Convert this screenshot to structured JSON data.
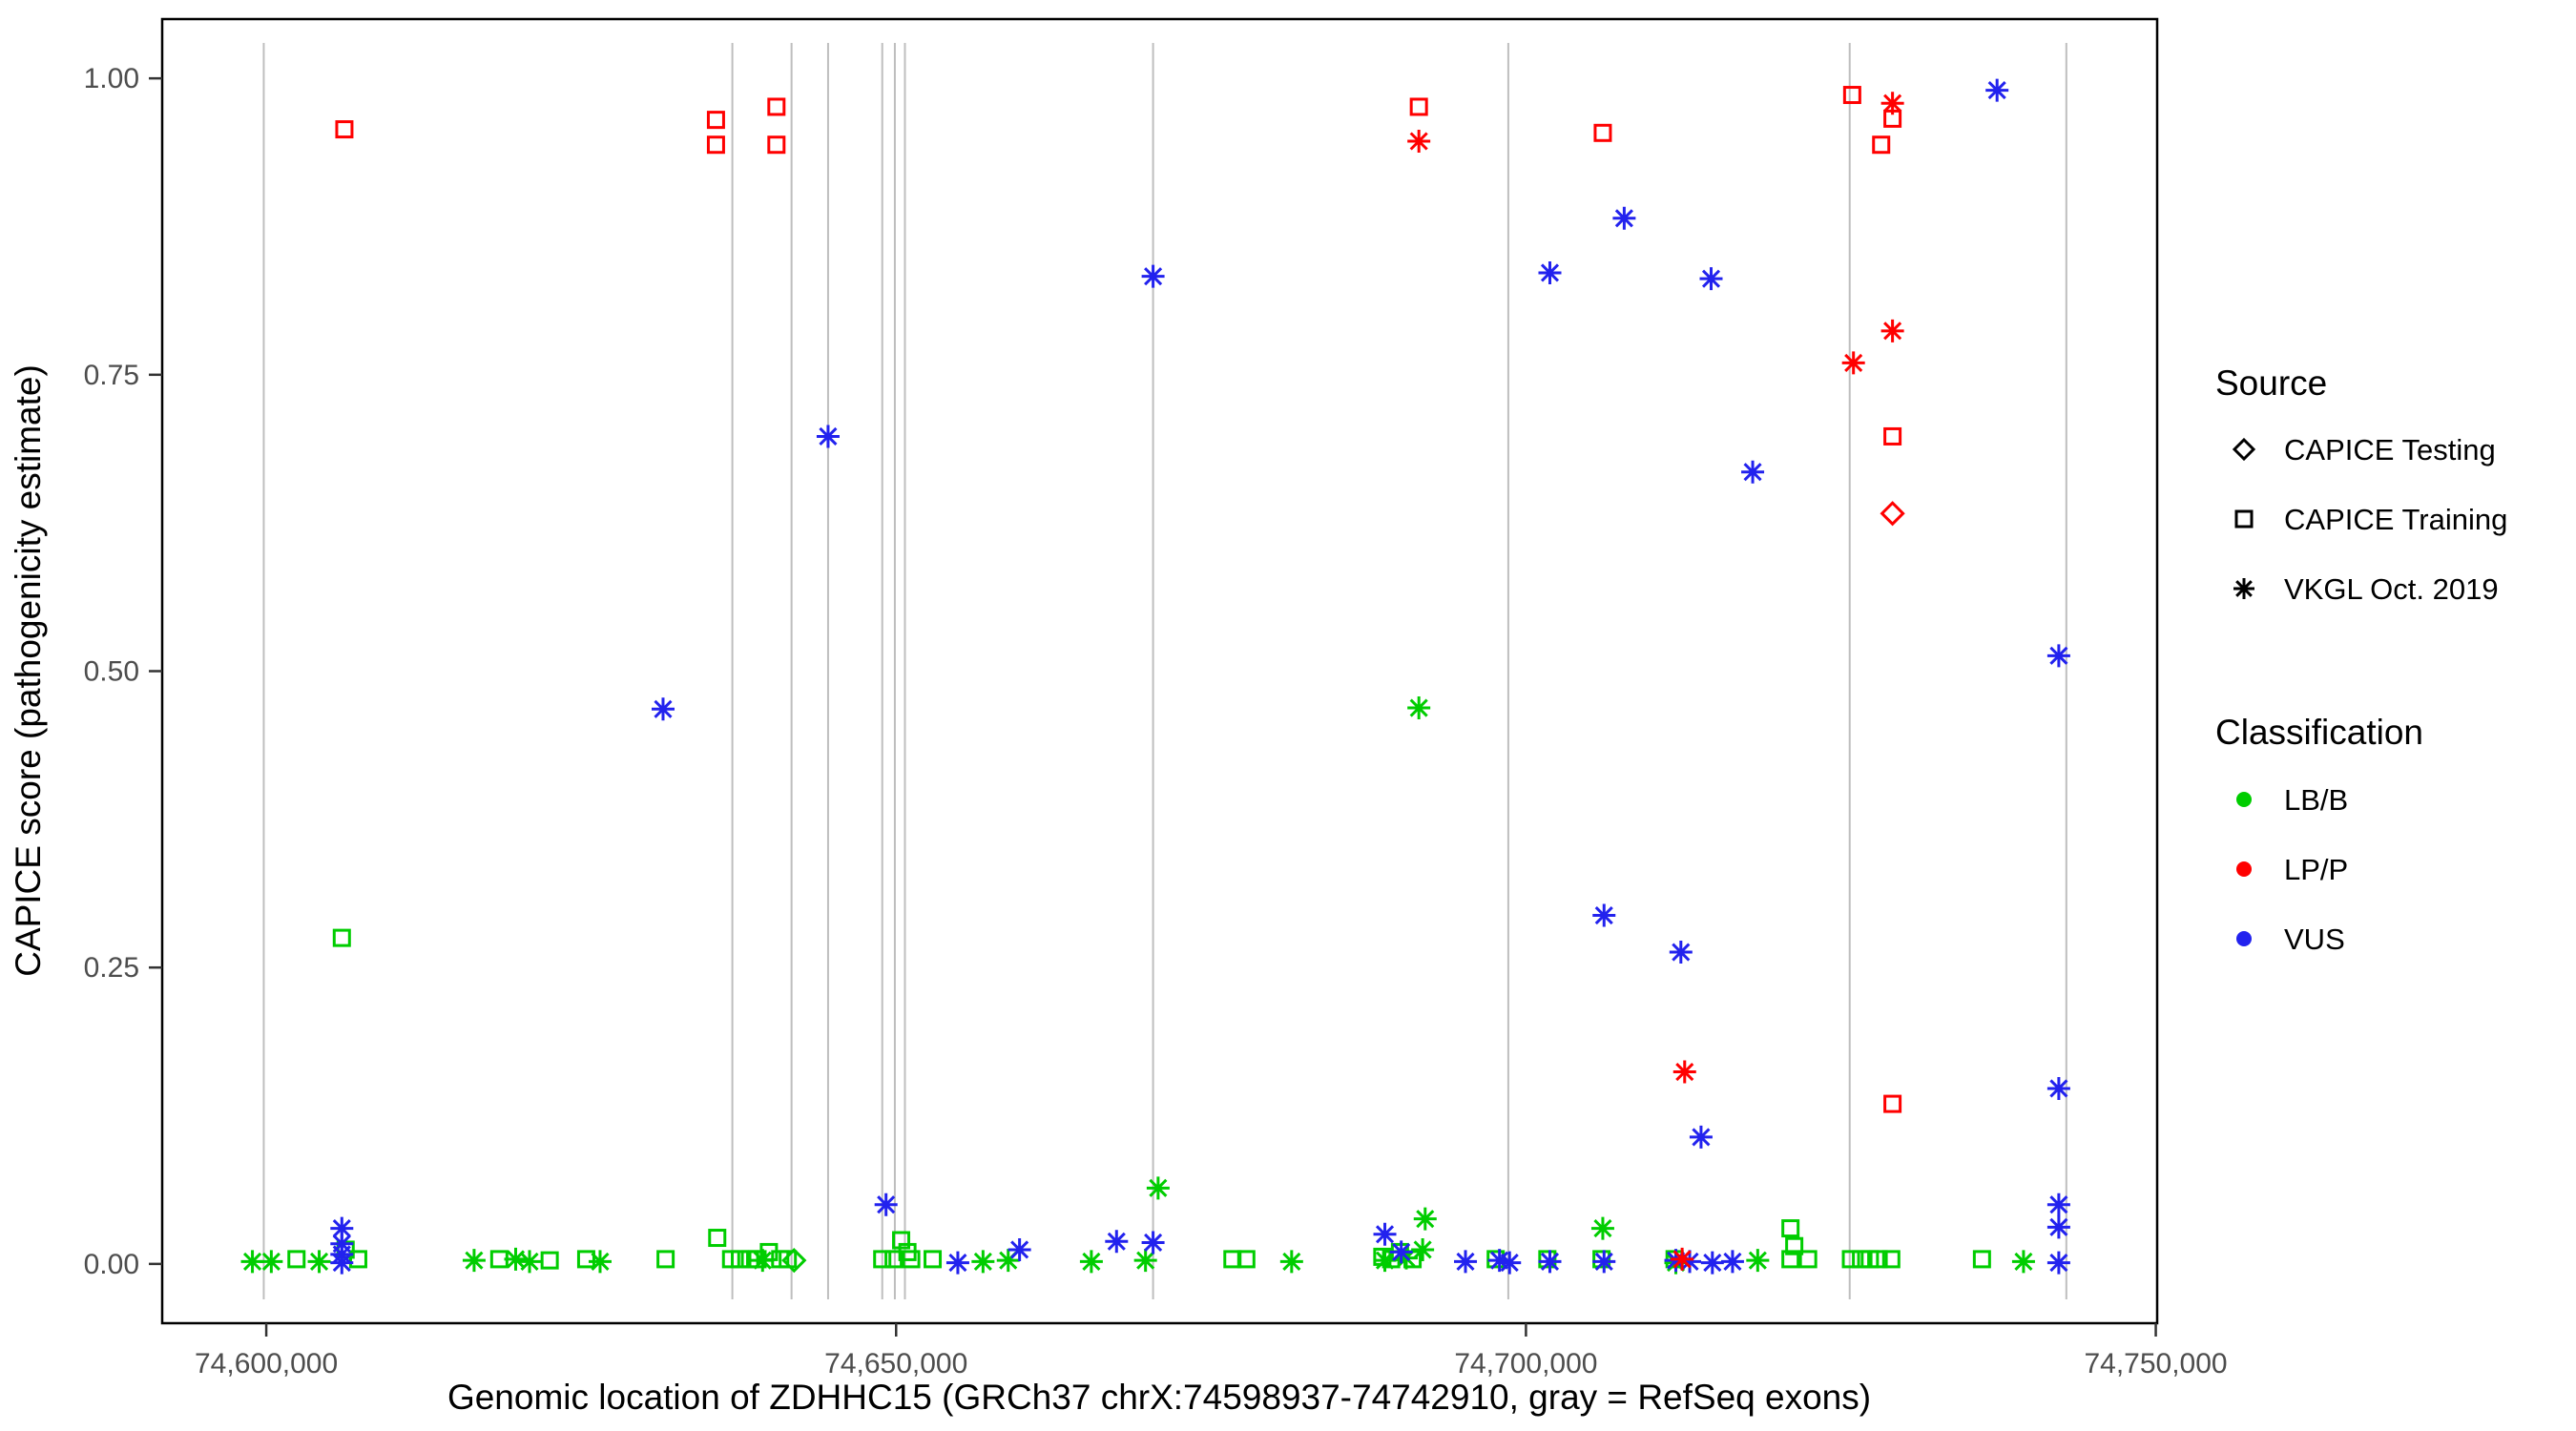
{
  "page": {
    "background": "#ffffff"
  },
  "chart_data": {
    "type": "scatter",
    "title": "",
    "xlabel": "Genomic location of ZDHHC15 (GRCh37 chrX:74598937-74742910, gray = RefSeq exons)",
    "ylabel": "CAPICE score (pathogenicity estimate)",
    "xlim": [
      74591738,
      74750109
    ],
    "ylim": [
      -0.05,
      1.05
    ],
    "grid": "off",
    "legend_position": "right",
    "x_ticks": [
      {
        "value": 74600000,
        "label": "74,600,000"
      },
      {
        "value": 74650000,
        "label": "74,650,000"
      },
      {
        "value": 74700000,
        "label": "74,700,000"
      },
      {
        "value": 74750000,
        "label": "74,750,000"
      }
    ],
    "y_ticks": [
      {
        "value": 0.0,
        "label": "0.00"
      },
      {
        "value": 0.25,
        "label": "0.25"
      },
      {
        "value": 0.5,
        "label": "0.50"
      },
      {
        "value": 0.75,
        "label": "0.75"
      },
      {
        "value": 1.0,
        "label": "1.00"
      }
    ],
    "exon_line_color": "#bebebe",
    "colors": {
      "LB/B": "#00cd00",
      "LP/P": "#ff0000",
      "VUS": "#2222ee"
    },
    "exons": [
      74599800,
      74637000,
      74641700,
      74644600,
      74648900,
      74649900,
      74650700,
      74670400,
      74698600,
      74725700,
      74742900
    ],
    "legend": {
      "source": {
        "title": "Source",
        "items": [
          {
            "label": "CAPICE Testing",
            "marker": "diamond"
          },
          {
            "label": "CAPICE Training",
            "marker": "square"
          },
          {
            "label": "VKGL Oct. 2019",
            "marker": "asterisk"
          }
        ]
      },
      "classification": {
        "title": "Classification",
        "items": [
          {
            "label": "LB/B",
            "color": "#00cd00"
          },
          {
            "label": "LP/P",
            "color": "#ff0000"
          },
          {
            "label": "VUS",
            "color": "#2222ee"
          }
        ]
      }
    },
    "points": [
      {
        "x": 74606000,
        "s": 0.275,
        "src": "training",
        "cls": "LB/B"
      },
      {
        "x": 74602400,
        "s": 0.004,
        "src": "training",
        "cls": "LB/B"
      },
      {
        "x": 74606300,
        "s": 0.012,
        "src": "training",
        "cls": "LB/B"
      },
      {
        "x": 74607300,
        "s": 0.004,
        "src": "training",
        "cls": "LB/B"
      },
      {
        "x": 74618500,
        "s": 0.004,
        "src": "training",
        "cls": "LB/B"
      },
      {
        "x": 74622500,
        "s": 0.003,
        "src": "training",
        "cls": "LB/B"
      },
      {
        "x": 74625400,
        "s": 0.004,
        "src": "training",
        "cls": "LB/B"
      },
      {
        "x": 74631700,
        "s": 0.004,
        "src": "training",
        "cls": "LB/B"
      },
      {
        "x": 74635800,
        "s": 0.022,
        "src": "training",
        "cls": "LB/B"
      },
      {
        "x": 74636900,
        "s": 0.004,
        "src": "training",
        "cls": "LB/B"
      },
      {
        "x": 74637600,
        "s": 0.004,
        "src": "training",
        "cls": "LB/B"
      },
      {
        "x": 74638400,
        "s": 0.004,
        "src": "training",
        "cls": "LB/B"
      },
      {
        "x": 74639000,
        "s": 0.004,
        "src": "training",
        "cls": "LB/B"
      },
      {
        "x": 74639900,
        "s": 0.01,
        "src": "training",
        "cls": "LB/B"
      },
      {
        "x": 74640800,
        "s": 0.004,
        "src": "training",
        "cls": "LB/B"
      },
      {
        "x": 74641400,
        "s": 0.004,
        "src": "training",
        "cls": "LB/B"
      },
      {
        "x": 74648900,
        "s": 0.004,
        "src": "training",
        "cls": "LB/B"
      },
      {
        "x": 74649800,
        "s": 0.004,
        "src": "training",
        "cls": "LB/B"
      },
      {
        "x": 74650400,
        "s": 0.02,
        "src": "training",
        "cls": "LB/B"
      },
      {
        "x": 74650900,
        "s": 0.01,
        "src": "training",
        "cls": "LB/B"
      },
      {
        "x": 74651200,
        "s": 0.004,
        "src": "training",
        "cls": "LB/B"
      },
      {
        "x": 74652900,
        "s": 0.004,
        "src": "training",
        "cls": "LB/B"
      },
      {
        "x": 74676700,
        "s": 0.004,
        "src": "training",
        "cls": "LB/B"
      },
      {
        "x": 74677800,
        "s": 0.004,
        "src": "training",
        "cls": "LB/B"
      },
      {
        "x": 74688600,
        "s": 0.006,
        "src": "training",
        "cls": "LB/B"
      },
      {
        "x": 74689300,
        "s": 0.004,
        "src": "training",
        "cls": "LB/B"
      },
      {
        "x": 74690000,
        "s": 0.01,
        "src": "training",
        "cls": "LB/B"
      },
      {
        "x": 74691000,
        "s": 0.004,
        "src": "training",
        "cls": "LB/B"
      },
      {
        "x": 74697600,
        "s": 0.004,
        "src": "training",
        "cls": "LB/B"
      },
      {
        "x": 74701700,
        "s": 0.004,
        "src": "training",
        "cls": "LB/B"
      },
      {
        "x": 74706000,
        "s": 0.004,
        "src": "training",
        "cls": "LB/B"
      },
      {
        "x": 74711800,
        "s": 0.004,
        "src": "training",
        "cls": "LB/B"
      },
      {
        "x": 74721000,
        "s": 0.03,
        "src": "training",
        "cls": "LB/B"
      },
      {
        "x": 74721300,
        "s": 0.015,
        "src": "training",
        "cls": "LB/B"
      },
      {
        "x": 74721000,
        "s": 0.004,
        "src": "training",
        "cls": "LB/B"
      },
      {
        "x": 74722400,
        "s": 0.004,
        "src": "training",
        "cls": "LB/B"
      },
      {
        "x": 74725800,
        "s": 0.004,
        "src": "training",
        "cls": "LB/B"
      },
      {
        "x": 74726600,
        "s": 0.004,
        "src": "training",
        "cls": "LB/B"
      },
      {
        "x": 74727300,
        "s": 0.004,
        "src": "training",
        "cls": "LB/B"
      },
      {
        "x": 74728000,
        "s": 0.004,
        "src": "training",
        "cls": "LB/B"
      },
      {
        "x": 74729000,
        "s": 0.004,
        "src": "training",
        "cls": "LB/B"
      },
      {
        "x": 74736200,
        "s": 0.004,
        "src": "training",
        "cls": "LB/B"
      },
      {
        "x": 74641900,
        "s": 0.003,
        "src": "testing",
        "cls": "LB/B"
      },
      {
        "x": 74670800,
        "s": 0.064,
        "src": "vkgl",
        "cls": "LB/B"
      },
      {
        "x": 74691500,
        "s": 0.469,
        "src": "vkgl",
        "cls": "LB/B"
      },
      {
        "x": 74692000,
        "s": 0.038,
        "src": "vkgl",
        "cls": "LB/B"
      },
      {
        "x": 74706100,
        "s": 0.03,
        "src": "vkgl",
        "cls": "LB/B"
      },
      {
        "x": 74598900,
        "s": 0.002,
        "src": "vkgl",
        "cls": "LB/B"
      },
      {
        "x": 74600400,
        "s": 0.002,
        "src": "vkgl",
        "cls": "LB/B"
      },
      {
        "x": 74604200,
        "s": 0.002,
        "src": "vkgl",
        "cls": "LB/B"
      },
      {
        "x": 74616500,
        "s": 0.003,
        "src": "vkgl",
        "cls": "LB/B"
      },
      {
        "x": 74619800,
        "s": 0.004,
        "src": "vkgl",
        "cls": "LB/B"
      },
      {
        "x": 74620900,
        "s": 0.002,
        "src": "vkgl",
        "cls": "LB/B"
      },
      {
        "x": 74626500,
        "s": 0.002,
        "src": "vkgl",
        "cls": "LB/B"
      },
      {
        "x": 74639400,
        "s": 0.003,
        "src": "vkgl",
        "cls": "LB/B"
      },
      {
        "x": 74656900,
        "s": 0.002,
        "src": "vkgl",
        "cls": "LB/B"
      },
      {
        "x": 74658900,
        "s": 0.003,
        "src": "vkgl",
        "cls": "LB/B"
      },
      {
        "x": 74665500,
        "s": 0.002,
        "src": "vkgl",
        "cls": "LB/B"
      },
      {
        "x": 74669800,
        "s": 0.003,
        "src": "vkgl",
        "cls": "LB/B"
      },
      {
        "x": 74681400,
        "s": 0.002,
        "src": "vkgl",
        "cls": "LB/B"
      },
      {
        "x": 74688800,
        "s": 0.003,
        "src": "vkgl",
        "cls": "LB/B"
      },
      {
        "x": 74690500,
        "s": 0.005,
        "src": "vkgl",
        "cls": "LB/B"
      },
      {
        "x": 74691800,
        "s": 0.012,
        "src": "vkgl",
        "cls": "LB/B"
      },
      {
        "x": 74711900,
        "s": 0.001,
        "src": "vkgl",
        "cls": "LB/B"
      },
      {
        "x": 74718400,
        "s": 0.003,
        "src": "vkgl",
        "cls": "LB/B"
      },
      {
        "x": 74739500,
        "s": 0.002,
        "src": "vkgl",
        "cls": "LB/B"
      },
      {
        "x": 74631500,
        "s": 0.468,
        "src": "vkgl",
        "cls": "VUS"
      },
      {
        "x": 74644600,
        "s": 0.698,
        "src": "vkgl",
        "cls": "VUS"
      },
      {
        "x": 74670400,
        "s": 0.833,
        "src": "vkgl",
        "cls": "VUS"
      },
      {
        "x": 74701900,
        "s": 0.836,
        "src": "vkgl",
        "cls": "VUS"
      },
      {
        "x": 74707800,
        "s": 0.882,
        "src": "vkgl",
        "cls": "VUS"
      },
      {
        "x": 74714700,
        "s": 0.831,
        "src": "vkgl",
        "cls": "VUS"
      },
      {
        "x": 74718000,
        "s": 0.668,
        "src": "vkgl",
        "cls": "VUS"
      },
      {
        "x": 74706200,
        "s": 0.294,
        "src": "vkgl",
        "cls": "VUS"
      },
      {
        "x": 74712300,
        "s": 0.263,
        "src": "vkgl",
        "cls": "VUS"
      },
      {
        "x": 74713900,
        "s": 0.107,
        "src": "vkgl",
        "cls": "VUS"
      },
      {
        "x": 74737400,
        "s": 0.99,
        "src": "vkgl",
        "cls": "VUS"
      },
      {
        "x": 74742300,
        "s": 0.513,
        "src": "vkgl",
        "cls": "VUS"
      },
      {
        "x": 74742300,
        "s": 0.148,
        "src": "vkgl",
        "cls": "VUS"
      },
      {
        "x": 74649200,
        "s": 0.05,
        "src": "vkgl",
        "cls": "VUS"
      },
      {
        "x": 74742300,
        "s": 0.05,
        "src": "vkgl",
        "cls": "VUS"
      },
      {
        "x": 74742300,
        "s": 0.031,
        "src": "vkgl",
        "cls": "VUS"
      },
      {
        "x": 74742300,
        "s": 0.001,
        "src": "vkgl",
        "cls": "VUS"
      },
      {
        "x": 74606000,
        "s": 0.03,
        "src": "vkgl",
        "cls": "VUS"
      },
      {
        "x": 74606000,
        "s": 0.017,
        "src": "vkgl",
        "cls": "VUS"
      },
      {
        "x": 74606000,
        "s": 0.008,
        "src": "vkgl",
        "cls": "VUS"
      },
      {
        "x": 74606000,
        "s": 0.001,
        "src": "vkgl",
        "cls": "VUS"
      },
      {
        "x": 74654900,
        "s": 0.001,
        "src": "vkgl",
        "cls": "VUS"
      },
      {
        "x": 74659800,
        "s": 0.012,
        "src": "vkgl",
        "cls": "VUS"
      },
      {
        "x": 74667500,
        "s": 0.019,
        "src": "vkgl",
        "cls": "VUS"
      },
      {
        "x": 74670400,
        "s": 0.018,
        "src": "vkgl",
        "cls": "VUS"
      },
      {
        "x": 74688800,
        "s": 0.025,
        "src": "vkgl",
        "cls": "VUS"
      },
      {
        "x": 74690100,
        "s": 0.01,
        "src": "vkgl",
        "cls": "VUS"
      },
      {
        "x": 74695200,
        "s": 0.002,
        "src": "vkgl",
        "cls": "VUS"
      },
      {
        "x": 74697900,
        "s": 0.003,
        "src": "vkgl",
        "cls": "VUS"
      },
      {
        "x": 74698700,
        "s": 0.001,
        "src": "vkgl",
        "cls": "VUS"
      },
      {
        "x": 74701900,
        "s": 0.002,
        "src": "vkgl",
        "cls": "VUS"
      },
      {
        "x": 74706200,
        "s": 0.002,
        "src": "vkgl",
        "cls": "VUS"
      },
      {
        "x": 74711900,
        "s": 0.003,
        "src": "vkgl",
        "cls": "VUS"
      },
      {
        "x": 74713000,
        "s": 0.002,
        "src": "vkgl",
        "cls": "VUS"
      },
      {
        "x": 74714800,
        "s": 0.001,
        "src": "vkgl",
        "cls": "VUS"
      },
      {
        "x": 74716400,
        "s": 0.002,
        "src": "vkgl",
        "cls": "VUS"
      },
      {
        "x": 74606200,
        "s": 0.957,
        "src": "training",
        "cls": "LP/P"
      },
      {
        "x": 74635700,
        "s": 0.965,
        "src": "training",
        "cls": "LP/P"
      },
      {
        "x": 74635700,
        "s": 0.944,
        "src": "training",
        "cls": "LP/P"
      },
      {
        "x": 74640500,
        "s": 0.976,
        "src": "training",
        "cls": "LP/P"
      },
      {
        "x": 74640500,
        "s": 0.944,
        "src": "training",
        "cls": "LP/P"
      },
      {
        "x": 74691500,
        "s": 0.976,
        "src": "training",
        "cls": "LP/P"
      },
      {
        "x": 74706100,
        "s": 0.954,
        "src": "training",
        "cls": "LP/P"
      },
      {
        "x": 74725900,
        "s": 0.986,
        "src": "training",
        "cls": "LP/P"
      },
      {
        "x": 74729100,
        "s": 0.966,
        "src": "training",
        "cls": "LP/P"
      },
      {
        "x": 74728200,
        "s": 0.944,
        "src": "training",
        "cls": "LP/P"
      },
      {
        "x": 74729100,
        "s": 0.698,
        "src": "training",
        "cls": "LP/P"
      },
      {
        "x": 74729100,
        "s": 0.135,
        "src": "training",
        "cls": "LP/P"
      },
      {
        "x": 74729100,
        "s": 0.633,
        "src": "testing",
        "cls": "LP/P"
      },
      {
        "x": 74691500,
        "s": 0.947,
        "src": "vkgl",
        "cls": "LP/P"
      },
      {
        "x": 74729100,
        "s": 0.979,
        "src": "vkgl",
        "cls": "LP/P"
      },
      {
        "x": 74726000,
        "s": 0.76,
        "src": "vkgl",
        "cls": "LP/P"
      },
      {
        "x": 74729100,
        "s": 0.787,
        "src": "vkgl",
        "cls": "LP/P"
      },
      {
        "x": 74712600,
        "s": 0.162,
        "src": "vkgl",
        "cls": "LP/P"
      },
      {
        "x": 74712400,
        "s": 0.004,
        "src": "vkgl",
        "cls": "LP/P"
      }
    ]
  }
}
